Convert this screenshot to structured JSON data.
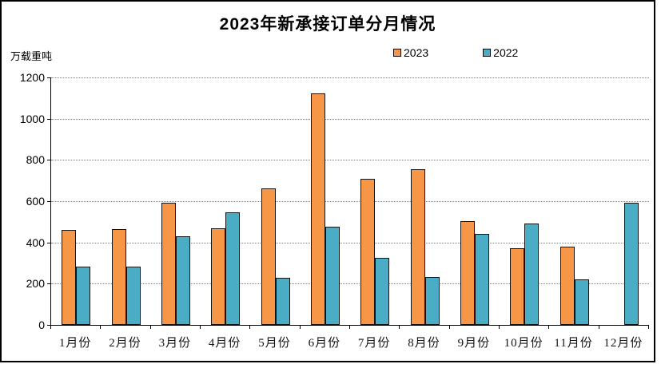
{
  "chart_data": {
    "type": "bar",
    "title": "2023年新承接订单分月情况",
    "unit_label": "万载重吨",
    "categories": [
      "1月份",
      "2月份",
      "3月份",
      "4月份",
      "5月份",
      "6月份",
      "7月份",
      "8月份",
      "9月份",
      "10月份",
      "11月份",
      "12月份"
    ],
    "series": [
      {
        "name": "2023",
        "color": "#F79646",
        "values": [
          460,
          464,
          593,
          467,
          660,
          1122,
          708,
          755,
          502,
          373,
          379,
          null
        ]
      },
      {
        "name": "2022",
        "color": "#4BACC6",
        "values": [
          284,
          284,
          430,
          546,
          228,
          477,
          324,
          232,
          440,
          493,
          220,
          592
        ]
      }
    ],
    "ylim": [
      0,
      1200
    ],
    "yticks": [
      0,
      200,
      400,
      600,
      800,
      1000,
      1200
    ],
    "grid": "horizontal-dotted",
    "legend_position": "top-center",
    "bar_border_color": "#131313",
    "gridline_color": "#7f7f7f"
  }
}
